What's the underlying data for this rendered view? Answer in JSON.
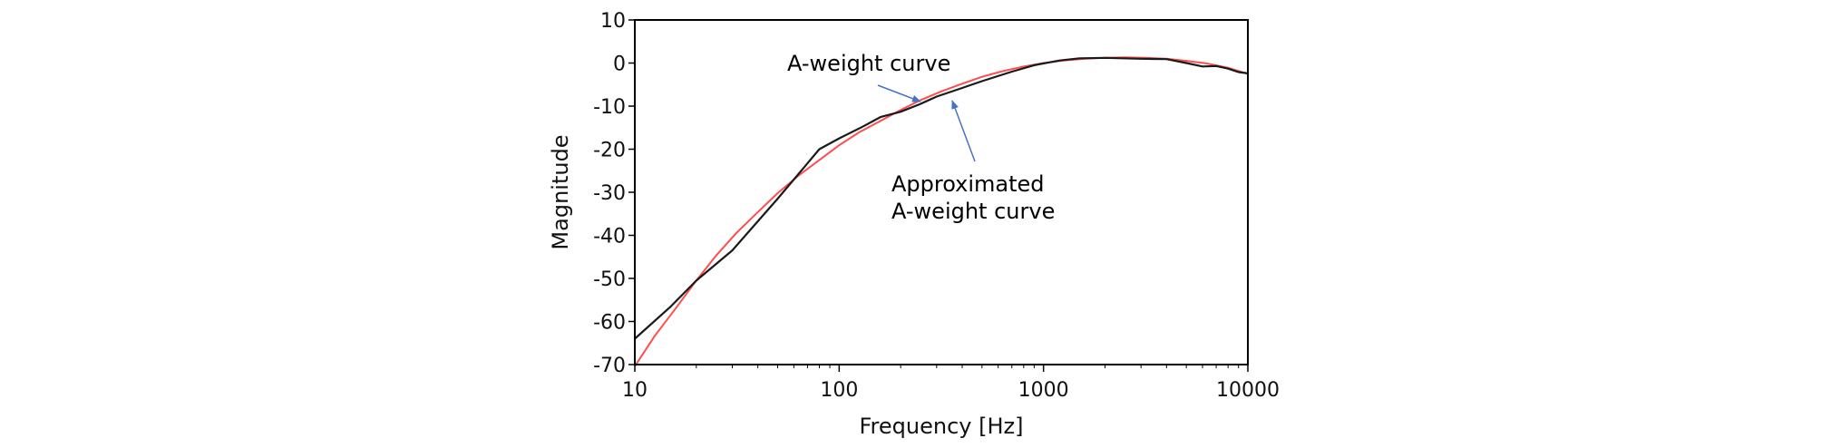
{
  "chart_data": {
    "type": "line",
    "title": "",
    "xlabel": "Frequency [Hz]",
    "ylabel": "Magnitude",
    "xscale": "log",
    "xlim": [
      10,
      10000
    ],
    "ylim": [
      -70,
      10
    ],
    "xticks": [
      10,
      100,
      1000,
      10000
    ],
    "xtick_labels": [
      "10",
      "100",
      "1000",
      "10000"
    ],
    "yticks": [
      10,
      0,
      -10,
      -20,
      -30,
      -40,
      -50,
      -60,
      -70
    ],
    "ytick_labels": [
      "10",
      "0",
      "-10",
      "-20",
      "-30",
      "-40",
      "-50",
      "-60",
      "-70"
    ],
    "grid": false,
    "series": [
      {
        "name": "A-weight curve",
        "color": "#ff4d4d",
        "x": [
          10,
          12.5,
          16,
          20,
          25,
          31.5,
          40,
          50,
          63,
          80,
          100,
          125,
          160,
          200,
          250,
          315,
          400,
          500,
          630,
          800,
          1000,
          1250,
          1600,
          2000,
          2500,
          3150,
          4000,
          5000,
          6300,
          8000,
          10000
        ],
        "y": [
          -70.4,
          -63.4,
          -56.7,
          -50.5,
          -44.7,
          -39.4,
          -34.6,
          -30.2,
          -26.2,
          -22.5,
          -19.1,
          -16.1,
          -13.4,
          -10.9,
          -8.6,
          -6.6,
          -4.8,
          -3.2,
          -1.9,
          -0.8,
          0.0,
          0.6,
          1.0,
          1.2,
          1.3,
          1.2,
          1.0,
          0.5,
          -0.1,
          -1.1,
          -2.5
        ]
      },
      {
        "name": "Approximated A-weight curve",
        "color": "#1a1a1a",
        "x": [
          10,
          15,
          20,
          30,
          50,
          80,
          100,
          130,
          160,
          200,
          250,
          300,
          400,
          500,
          700,
          900,
          1200,
          1500,
          2000,
          3000,
          4000,
          5000,
          6000,
          7000,
          8000,
          9000,
          10000
        ],
        "y": [
          -64,
          -56.5,
          -50.5,
          -43.5,
          -31.5,
          -20.0,
          -17.5,
          -14.8,
          -12.5,
          -11.3,
          -9.5,
          -7.8,
          -5.8,
          -4.2,
          -2.0,
          -0.5,
          0.6,
          1.1,
          1.2,
          1.0,
          0.9,
          0.0,
          -0.8,
          -0.7,
          -1.3,
          -2.1,
          -2.4
        ]
      }
    ],
    "annotations": [
      {
        "lines": [
          "A-weight curve"
        ],
        "target_series": "A-weight curve"
      },
      {
        "lines": [
          "Approximated",
          "A-weight curve"
        ],
        "target_series": "Approximated A-weight curve"
      }
    ]
  },
  "colors": {
    "arrow": "#4a72c4",
    "axis": "#000000",
    "background": "#ffffff"
  }
}
